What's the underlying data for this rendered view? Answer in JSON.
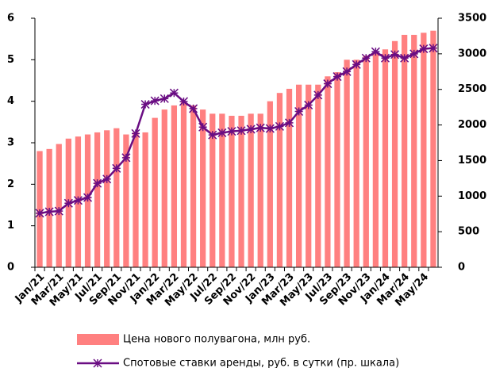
{
  "chart_data": {
    "type": "combo",
    "categories": [
      "Jan/21",
      null,
      "Mar/21",
      null,
      "May/21",
      null,
      "Jul/21",
      null,
      "Sep/21",
      null,
      "Nov/21",
      null,
      "Jan/22",
      null,
      "Mar/22",
      null,
      "May/22",
      null,
      "Jul/22",
      null,
      "Sep/22",
      null,
      "Nov/22",
      null,
      "Jan/23",
      null,
      "Mar/23",
      null,
      "May/23",
      null,
      "Jul/23",
      null,
      "Sep/23",
      null,
      "Nov/23",
      null,
      "Jan/24",
      null,
      "Mar/24",
      null,
      "May/24",
      null
    ],
    "series": [
      {
        "name": "Цена нового полувагона, млн руб.",
        "type": "bar",
        "color": "#ff8080",
        "values": [
          2.8,
          2.85,
          2.97,
          3.1,
          3.15,
          3.2,
          3.25,
          3.3,
          3.35,
          3.2,
          3.25,
          3.25,
          3.6,
          3.8,
          3.9,
          4.0,
          3.9,
          3.8,
          3.7,
          3.7,
          3.65,
          3.65,
          3.7,
          3.7,
          4.0,
          4.2,
          4.3,
          4.4,
          4.4,
          4.4,
          4.6,
          4.7,
          5.0,
          5.0,
          5.1,
          5.2,
          5.25,
          5.45,
          5.6,
          5.6,
          5.65,
          5.7
        ]
      },
      {
        "name": "Спотовые ставки аренды, руб. в сутки (пр. шкала)",
        "type": "line",
        "axis": "y2",
        "color": "#6a0d83",
        "values": [
          760,
          780,
          790,
          900,
          940,
          980,
          1180,
          1240,
          1390,
          1540,
          1880,
          2290,
          2340,
          2370,
          2450,
          2330,
          2230,
          1970,
          1860,
          1890,
          1910,
          1920,
          1940,
          1960,
          1950,
          1980,
          2030,
          2190,
          2280,
          2420,
          2580,
          2680,
          2750,
          2850,
          2940,
          3030,
          2940,
          2990,
          2940,
          3000,
          3070,
          3080
        ]
      }
    ],
    "ylim": [
      0,
      6
    ],
    "yticks": [
      0,
      1,
      2,
      3,
      4,
      5,
      6
    ],
    "y2lim": [
      0,
      3500
    ],
    "y2ticks": [
      0,
      500,
      1000,
      1500,
      2000,
      2500,
      3000,
      3500
    ],
    "grid": false,
    "legend": "bottom"
  }
}
